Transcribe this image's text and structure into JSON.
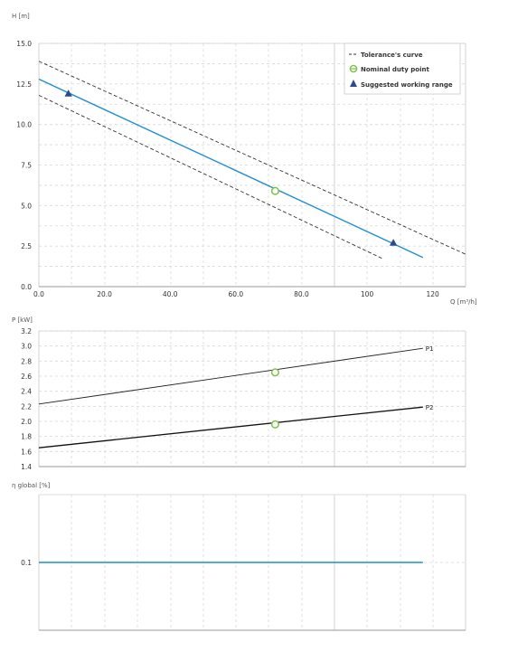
{
  "chart_data": [
    {
      "type": "line",
      "ylabel": "H [m]",
      "xlabel": "Q [m³/h]",
      "xlim": [
        0,
        130
      ],
      "ylim": [
        0,
        15
      ],
      "xticks": [
        "0.0",
        "20.0",
        "40.0",
        "60.0",
        "80.0",
        "100",
        "120"
      ],
      "xtick_values": [
        0,
        20,
        40,
        60,
        80,
        100,
        120
      ],
      "yticks": [
        "0.0",
        "2.5",
        "5.0",
        "7.5",
        "10.0",
        "12.5",
        "15.0"
      ],
      "ytick_values": [
        0,
        2.5,
        5,
        7.5,
        10,
        12.5,
        15
      ],
      "grid": true,
      "legend": {
        "position": "top-right",
        "items": [
          "Tolerance's curve",
          "Nominal duty point",
          "Suggested working range"
        ]
      },
      "series": [
        {
          "kind": "main",
          "color": "#1f8fd1",
          "x": [
            0,
            117
          ],
          "y": [
            12.8,
            1.8
          ]
        },
        {
          "kind": "tolerance-upper",
          "color": "#333333",
          "x": [
            0,
            130
          ],
          "y": [
            13.9,
            2.0
          ]
        },
        {
          "kind": "tolerance-lower",
          "color": "#333333",
          "x": [
            0,
            105
          ],
          "y": [
            11.8,
            1.7
          ]
        }
      ],
      "duty_point": {
        "x": 72,
        "y": 5.9,
        "color": "#7cc142"
      },
      "working_range": [
        {
          "x": 9,
          "y": 11.9
        },
        {
          "x": 108,
          "y": 2.7
        }
      ],
      "marker_color": "#2e4a8e"
    },
    {
      "type": "line",
      "ylabel": "P [kW]",
      "xlim": [
        0,
        130
      ],
      "ylim": [
        1.4,
        3.2
      ],
      "yticks": [
        "1.4",
        "1.6",
        "1.8",
        "2.0",
        "2.2",
        "2.4",
        "2.6",
        "2.8",
        "3.0",
        "3.2"
      ],
      "ytick_values": [
        1.4,
        1.6,
        1.8,
        2.0,
        2.2,
        2.4,
        2.6,
        2.8,
        3.0,
        3.2
      ],
      "grid": true,
      "series": [
        {
          "name": "P1",
          "color": "#222222",
          "x": [
            0,
            117
          ],
          "y": [
            2.23,
            2.97
          ]
        },
        {
          "name": "P2",
          "color": "#111111",
          "x": [
            0,
            117
          ],
          "y": [
            1.65,
            2.19
          ]
        }
      ],
      "duty_points": [
        {
          "x": 72,
          "y": 2.65
        },
        {
          "x": 72,
          "y": 1.96
        }
      ],
      "duty_color": "#7cc142"
    },
    {
      "type": "line",
      "ylabel": "η global [%]",
      "xlim": [
        0,
        130
      ],
      "ylim": [
        0,
        0.2
      ],
      "yticks": [
        "0.1"
      ],
      "ytick_values": [
        0.1
      ],
      "grid": true,
      "series": [
        {
          "kind": "efficiency",
          "color": "#1f8fd1",
          "x": [
            0,
            117
          ],
          "y": [
            0.1,
            0.1
          ]
        }
      ]
    }
  ]
}
